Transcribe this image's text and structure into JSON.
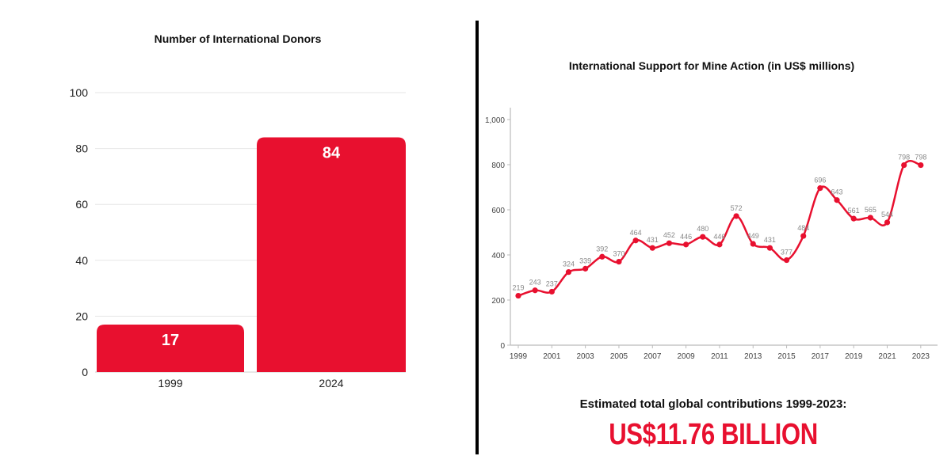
{
  "colors": {
    "accent": "#e8102f",
    "text": "#111111",
    "grid": "#e6e6e6",
    "axis": "#bbbbbb"
  },
  "summary": {
    "label": "Estimated total global contributions 1999-2023:",
    "value": "US$11.76 BILLION"
  },
  "chart_data": [
    {
      "type": "bar",
      "title": "Number of International Donors",
      "categories": [
        "1999",
        "2024"
      ],
      "values": [
        17,
        84
      ],
      "data_labels": [
        "17",
        "84"
      ],
      "yticks": [
        "0",
        "20",
        "40",
        "60",
        "80",
        "100"
      ],
      "ylim": [
        0,
        100
      ],
      "grid": true,
      "xlabel": "",
      "ylabel": ""
    },
    {
      "type": "line",
      "title": "International Support for Mine Action (in US$ millions)",
      "x": [
        1999,
        2000,
        2001,
        2002,
        2003,
        2004,
        2005,
        2006,
        2007,
        2008,
        2009,
        2010,
        2011,
        2012,
        2013,
        2014,
        2015,
        2016,
        2017,
        2018,
        2019,
        2020,
        2021,
        2022,
        2023
      ],
      "values": [
        219,
        243,
        237,
        324,
        339,
        392,
        370,
        464,
        431,
        452,
        446,
        480,
        446,
        572,
        449,
        431,
        377,
        484,
        696,
        643,
        561,
        565,
        544,
        798,
        798
      ],
      "data_labels": [
        "219",
        "243",
        "237",
        "324",
        "339",
        "392",
        "370",
        "464",
        "431",
        "452",
        "446",
        "480",
        "446",
        "572",
        "449",
        "431",
        "377",
        "484",
        "696",
        "643",
        "561",
        "565",
        "544",
        "798",
        "798"
      ],
      "xticks": [
        "1999",
        "2001",
        "2003",
        "2005",
        "2007",
        "2009",
        "2011",
        "2013",
        "2015",
        "2017",
        "2019",
        "2021",
        "2023"
      ],
      "yticks": [
        "0",
        "200",
        "400",
        "600",
        "800",
        "1,000"
      ],
      "ylim": [
        0,
        1000
      ],
      "xlim": [
        1999,
        2024
      ],
      "grid": false,
      "xlabel": "",
      "ylabel": ""
    }
  ]
}
